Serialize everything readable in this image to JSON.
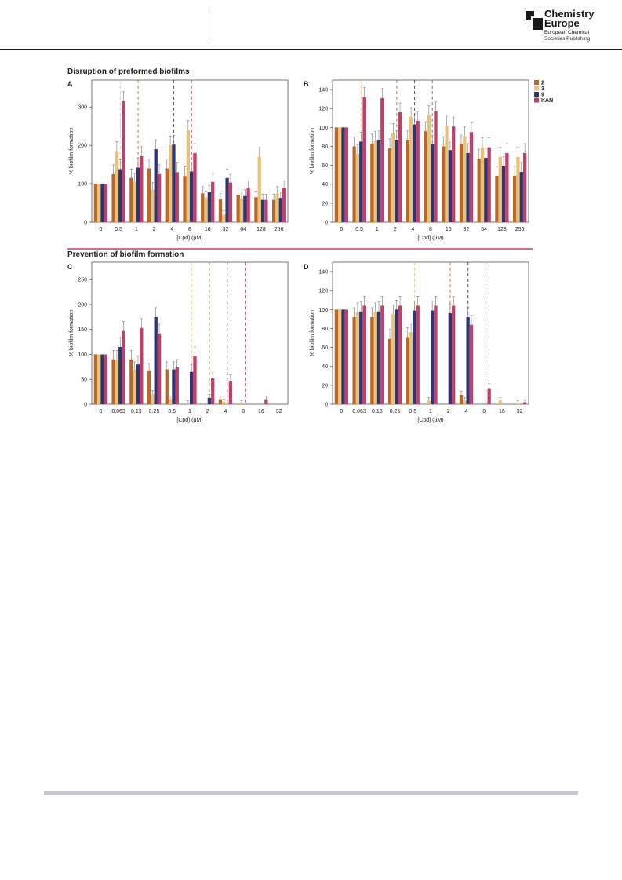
{
  "header": {
    "logo_title_1": "Chemistry",
    "logo_title_2": "Europe",
    "logo_sub_1": "European Chemical",
    "logo_sub_2": "Societies Publishing"
  },
  "sections": {
    "top": "Disruption of preformed biofilms",
    "bottom": "Prevention of biofilm formation"
  },
  "colors": {
    "c2": "#b8692a",
    "c3": "#e8c27a",
    "c9": "#2e3570",
    "KAN": "#c0406a",
    "axis": "#555555"
  },
  "legend": [
    "2",
    "3",
    "9",
    "KAN"
  ],
  "chart_data": [
    {
      "panel": "A",
      "type": "bar",
      "xlabel": "[Cpd] (μM)",
      "ylabel": "% biofilm formation",
      "ylim": [
        0,
        370
      ],
      "yticks": [
        0,
        100,
        200,
        300
      ],
      "categories": [
        "0",
        "0.5",
        "1",
        "2",
        "4",
        "8",
        "16",
        "32",
        "64",
        "128",
        "256"
      ],
      "series": [
        {
          "name": "2",
          "values": [
            100,
            125,
            115,
            140,
            140,
            120,
            75,
            60,
            72,
            65,
            58
          ]
        },
        {
          "name": "3",
          "values": [
            100,
            185,
            105,
            85,
            200,
            240,
            65,
            20,
            63,
            170,
            75
          ]
        },
        {
          "name": "9",
          "values": [
            100,
            138,
            142,
            190,
            202,
            132,
            78,
            115,
            68,
            58,
            63
          ]
        },
        {
          "name": "KAN",
          "values": [
            100,
            315,
            172,
            125,
            130,
            180,
            105,
            103,
            88,
            58,
            88
          ]
        }
      ],
      "dashed_lines": [
        {
          "series": "3",
          "after_index": 1.6
        },
        {
          "series": "2",
          "after_index": 2.6
        },
        {
          "series": "9",
          "after_index": 4.6
        },
        {
          "series": "KAN",
          "after_index": 5.6
        }
      ]
    },
    {
      "panel": "B",
      "type": "bar",
      "xlabel": "[Cpd] (μM)",
      "ylabel": "% biofilm formation",
      "ylim": [
        0,
        150
      ],
      "yticks": [
        0,
        20,
        40,
        60,
        80,
        100,
        120,
        140
      ],
      "categories": [
        "0",
        "0.5",
        "1",
        "2",
        "4",
        "8",
        "16",
        "32",
        "64",
        "128",
        "256"
      ],
      "series": [
        {
          "name": "2",
          "values": [
            100,
            80,
            83,
            78,
            87,
            96,
            80,
            82,
            67,
            49,
            49
          ]
        },
        {
          "name": "3",
          "values": [
            100,
            72,
            86,
            94,
            111,
            113,
            102,
            91,
            79,
            69,
            69
          ]
        },
        {
          "name": "9",
          "values": [
            100,
            85,
            87,
            87,
            103,
            82,
            76,
            73,
            68,
            59,
            53
          ]
        },
        {
          "name": "KAN",
          "values": [
            100,
            132,
            131,
            116,
            107,
            117,
            101,
            95,
            79,
            73,
            73
          ]
        }
      ],
      "dashed_lines": [
        {
          "series": "3",
          "after_index": 1.6
        },
        {
          "series": "2",
          "after_index": 3.6
        },
        {
          "series": "9",
          "after_index": 4.6
        },
        {
          "series": "KAN",
          "after_index": 5.6
        }
      ]
    },
    {
      "panel": "C",
      "type": "bar",
      "xlabel": "[Cpd] (μM)",
      "ylabel": "% biofilm formation",
      "ylim": [
        0,
        285
      ],
      "yticks": [
        0,
        50,
        100,
        150,
        200,
        250
      ],
      "categories": [
        "0",
        "0.063",
        "0.13",
        "0.25",
        "0.5",
        "1",
        "2",
        "4",
        "8",
        "16",
        "32"
      ],
      "series": [
        {
          "name": "2",
          "values": [
            100,
            90,
            90,
            68,
            70,
            0,
            0,
            10,
            0,
            0,
            0
          ]
        },
        {
          "name": "3",
          "values": [
            100,
            90,
            70,
            20,
            10,
            2,
            0,
            5,
            2,
            0,
            0
          ]
        },
        {
          "name": "9",
          "values": [
            100,
            115,
            80,
            175,
            70,
            65,
            13,
            0,
            0,
            0,
            0
          ]
        },
        {
          "name": "KAN",
          "values": [
            100,
            147,
            153,
            142,
            74,
            96,
            52,
            47,
            0,
            10,
            0
          ]
        }
      ],
      "dashed_lines": [
        {
          "series": "3",
          "after_index": 5.6
        },
        {
          "series": "2",
          "after_index": 6.6
        },
        {
          "series": "9",
          "after_index": 7.6
        },
        {
          "series": "KAN",
          "after_index": 8.6
        }
      ]
    },
    {
      "panel": "D",
      "type": "bar",
      "xlabel": "[Cpd] (μM)",
      "ylabel": "% biofilm formation",
      "ylim": [
        0,
        150
      ],
      "yticks": [
        0,
        20,
        40,
        60,
        80,
        100,
        120,
        140
      ],
      "categories": [
        "0",
        "0.063",
        "0.13",
        "0.25",
        "0.5",
        "1",
        "2",
        "4",
        "8",
        "16",
        "32"
      ],
      "series": [
        {
          "name": "2",
          "values": [
            100,
            92,
            92,
            69,
            71,
            0,
            0,
            10,
            0,
            0,
            0
          ]
        },
        {
          "name": "3",
          "values": [
            100,
            97,
            97,
            95,
            76,
            4,
            0,
            4,
            0,
            4,
            1
          ]
        },
        {
          "name": "9",
          "values": [
            100,
            98,
            98,
            100,
            99,
            99,
            96,
            92,
            0,
            0,
            0
          ]
        },
        {
          "name": "KAN",
          "values": [
            100,
            104,
            104,
            104,
            104,
            104,
            104,
            84,
            17,
            0,
            2
          ]
        }
      ],
      "dashed_lines": [
        {
          "series": "3",
          "after_index": 4.6
        },
        {
          "series": "2",
          "after_index": 6.6
        },
        {
          "series": "9",
          "after_index": 7.6
        },
        {
          "series": "KAN",
          "after_index": 8.6
        }
      ]
    }
  ]
}
